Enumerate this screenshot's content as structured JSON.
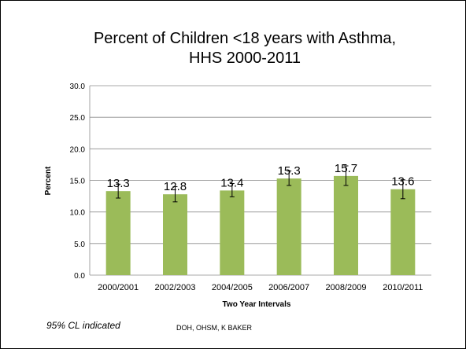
{
  "slide": {
    "footnote": "95% CL indicated",
    "credit": "DOH, OHSM, K BAKER"
  },
  "chart_data": {
    "type": "bar",
    "title_line1": "Percent of Children <18 years with Asthma,",
    "title_line2": "HHS 2000-2011",
    "xlabel": "Two Year Intervals",
    "ylabel": "Percent",
    "categories": [
      "2000/2001",
      "2002/2003",
      "2004/2005",
      "2006/2007",
      "2008/2009",
      "2010/2011"
    ],
    "values": [
      13.3,
      12.8,
      13.4,
      15.3,
      15.7,
      13.6
    ],
    "error_low": [
      12.2,
      11.6,
      12.4,
      14.2,
      14.2,
      12.1
    ],
    "error_high": [
      14.4,
      14.0,
      14.5,
      16.5,
      17.3,
      15.1
    ],
    "value_labels": [
      "13.3",
      "12.8",
      "13.4",
      "15.3",
      "15.7",
      "13.6"
    ],
    "yticks": [
      "0.0",
      "5.0",
      "10.0",
      "15.0",
      "20.0",
      "25.0",
      "30.0"
    ],
    "ylim": [
      0,
      30
    ],
    "grid": true,
    "legend": "none",
    "colors": {
      "bar": "#9bbb59",
      "grid": "#8c8c8c",
      "axis": "#8c8c8c"
    }
  }
}
